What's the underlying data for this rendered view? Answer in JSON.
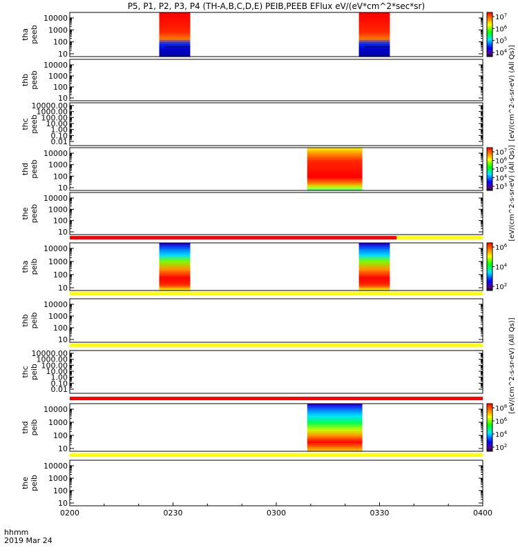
{
  "title": "P5, P1, P2, P3, P4 (TH-A,B,C,D,E) PEIB,PEEB EFlux eV/(eV*cm^2*sec*sr)",
  "xaxis": {
    "label_line1": "hhmm",
    "label_line2": "2019 Mar 24",
    "ticks": [
      "0200",
      "0230",
      "0300",
      "0330",
      "0400"
    ]
  },
  "colorbars": {
    "label_top": "[eV/(cm^2-s-sr-eV) (All Qs)]",
    "label_mid": "[eV/(cm^2-s-sr-eV) (All Qs)]",
    "label_low": "[eV/(cm^2-s-sr-eV) (All Qs)]"
  },
  "chart_data": {
    "type": "heatmap",
    "time_range": [
      "0200",
      "0400"
    ],
    "time_ticks": [
      "0200",
      "0230",
      "0300",
      "0330",
      "0400"
    ],
    "flag_bar_colors": {
      "red": "#ff0000",
      "yellow": "#ffff00"
    },
    "panels": [
      {
        "name": "tha peeb",
        "y_ticks": [
          "10",
          "100",
          "1000",
          "10000"
        ],
        "data_blocks": [
          {
            "start": "0226",
            "end": "0235",
            "profile": "electron_a"
          },
          {
            "start": "0324",
            "end": "0333",
            "profile": "electron_a"
          }
        ],
        "colorbar": {
          "ticks": [
            "10^4",
            "10^5",
            "10^6",
            "10^7"
          ]
        }
      },
      {
        "name": "thb peeb",
        "y_ticks": [
          "10",
          "100",
          "1000",
          "10000"
        ],
        "data_blocks": []
      },
      {
        "name": "thc peeb",
        "y_ticks": [
          "0.01",
          "0.10",
          "1.00",
          "10.00",
          "100.00",
          "1000.00",
          "10000.00"
        ],
        "data_blocks": []
      },
      {
        "name": "thd peeb",
        "y_ticks": [
          "10",
          "100",
          "1000",
          "10000"
        ],
        "data_blocks": [
          {
            "start": "0309",
            "end": "0325",
            "profile": "electron_d"
          }
        ],
        "colorbar": {
          "ticks": [
            "10^3",
            "10^4",
            "10^5",
            "10^6",
            "10^7"
          ]
        }
      },
      {
        "name": "the peeb",
        "y_ticks": [
          "10",
          "100",
          "1000",
          "10000"
        ],
        "data_blocks": []
      },
      {
        "name": "tha peib",
        "y_ticks": [
          "10",
          "100",
          "1000",
          "10000"
        ],
        "flag_bar": [
          {
            "start": "0200",
            "end": "0335",
            "color": "red"
          },
          {
            "start": "0335",
            "end": "0400",
            "color": "yellow"
          }
        ],
        "data_blocks": [
          {
            "start": "0226",
            "end": "0235",
            "profile": "ion_a"
          },
          {
            "start": "0324",
            "end": "0333",
            "profile": "ion_a"
          }
        ],
        "colorbar": {
          "ticks": [
            "10^2",
            "10^4",
            "10^6"
          ]
        }
      },
      {
        "name": "thb peib",
        "y_ticks": [
          "10",
          "100",
          "1000",
          "10000"
        ],
        "flag_bar": [
          {
            "start": "0200",
            "end": "0400",
            "color": "yellow"
          }
        ],
        "data_blocks": []
      },
      {
        "name": "thc peib",
        "y_ticks": [
          "0.01",
          "0.10",
          "1.00",
          "10.00",
          "100.00",
          "1000.00",
          "10000.00"
        ],
        "flag_bar": [
          {
            "start": "0200",
            "end": "0400",
            "color": "yellow"
          }
        ],
        "data_blocks": []
      },
      {
        "name": "thd peib",
        "y_ticks": [
          "10",
          "100",
          "1000",
          "10000"
        ],
        "flag_bar": [
          {
            "start": "0200",
            "end": "0400",
            "color": "red"
          }
        ],
        "data_blocks": [
          {
            "start": "0309",
            "end": "0325",
            "profile": "ion_d"
          }
        ],
        "colorbar": {
          "ticks": [
            "10^2",
            "10^4",
            "10^6",
            "10^8"
          ]
        }
      },
      {
        "name": "the peib",
        "y_ticks": [
          "10",
          "100",
          "1000",
          "10000"
        ],
        "flag_bar": [
          {
            "start": "0200",
            "end": "0400",
            "color": "yellow"
          }
        ],
        "data_blocks": []
      }
    ]
  }
}
